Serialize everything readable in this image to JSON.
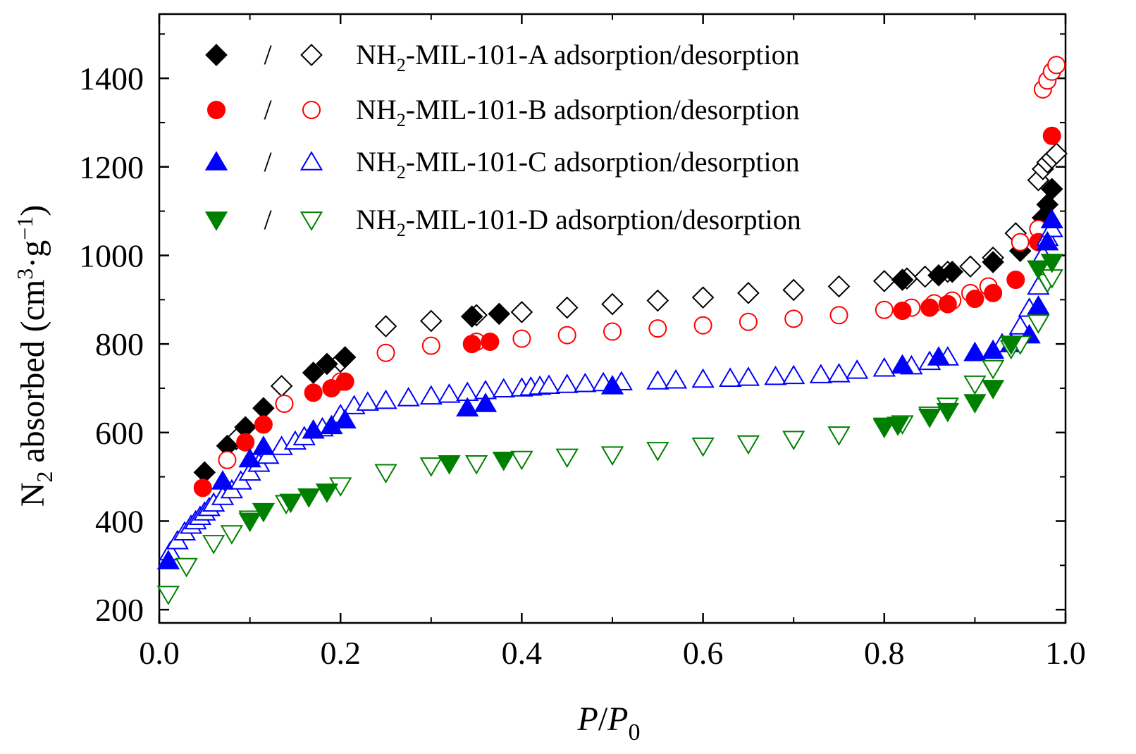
{
  "chart_data": {
    "type": "scatter",
    "xlabel": {
      "italic_main": "P",
      "slash": "/",
      "italic_denom": "P",
      "subscript": "0"
    },
    "ylabel": {
      "prefix": "N",
      "prefix_sub": "2",
      "middle": " absorbed (cm",
      "exp1": "3",
      "dot_g": "·g",
      "exp2": "−1",
      "suffix": ")"
    },
    "xlim": [
      0.0,
      1.0
    ],
    "ylim": [
      170,
      1545
    ],
    "xticks": [
      0.0,
      0.2,
      0.4,
      0.6,
      0.8,
      1.0
    ],
    "xtick_labels": [
      "0.0",
      "0.2",
      "0.4",
      "0.6",
      "0.8",
      "1.0"
    ],
    "yticks": [
      200,
      400,
      600,
      800,
      1000,
      1200,
      1400
    ],
    "ytick_labels": [
      "200",
      "400",
      "600",
      "800",
      "1000",
      "1200",
      "1400"
    ],
    "grid": false,
    "legend_position": "top-left",
    "legend_separator": "/",
    "series": [
      {
        "name": "NH2-MIL-101-A adsorption/desorption",
        "label_prefix": "NH",
        "label_sub": "2",
        "label_suffix": "-MIL-101-A adsorption/desorption",
        "color": "#000000",
        "adsorption_marker": "diamond",
        "desorption_marker": "diamond",
        "adsorption": {
          "x": [
            0.05,
            0.075,
            0.095,
            0.115,
            0.17,
            0.185,
            0.205,
            0.345,
            0.375,
            0.82,
            0.86,
            0.875,
            0.92,
            0.95,
            0.975,
            0.98,
            0.985
          ],
          "y": [
            510,
            570,
            612,
            655,
            735,
            755,
            770,
            862,
            868,
            945,
            955,
            963,
            985,
            1010,
            1085,
            1115,
            1150
          ]
        },
        "desorption": {
          "x": [
            0.085,
            0.135,
            0.2,
            0.25,
            0.3,
            0.35,
            0.4,
            0.45,
            0.5,
            0.55,
            0.6,
            0.65,
            0.7,
            0.75,
            0.8,
            0.825,
            0.845,
            0.87,
            0.895,
            0.92,
            0.945,
            0.97,
            0.975,
            0.98,
            0.985,
            0.99
          ],
          "y": [
            585,
            705,
            760,
            840,
            852,
            865,
            872,
            882,
            890,
            898,
            905,
            915,
            922,
            930,
            942,
            948,
            952,
            963,
            975,
            995,
            1050,
            1170,
            1195,
            1210,
            1220,
            1230
          ]
        }
      },
      {
        "name": "NH2-MIL-101-B adsorption/desorption",
        "label_prefix": "NH",
        "label_sub": "2",
        "label_suffix": "-MIL-101-B adsorption/desorption",
        "color": "#ff0000",
        "adsorption_marker": "circle",
        "desorption_marker": "circle",
        "adsorption": {
          "x": [
            0.048,
            0.095,
            0.115,
            0.17,
            0.19,
            0.205,
            0.345,
            0.365,
            0.82,
            0.85,
            0.87,
            0.9,
            0.92,
            0.945,
            0.97,
            0.985
          ],
          "y": [
            475,
            578,
            618,
            690,
            700,
            715,
            800,
            805,
            875,
            882,
            890,
            902,
            915,
            945,
            1030,
            1270
          ]
        },
        "desorption": {
          "x": [
            0.075,
            0.138,
            0.2,
            0.25,
            0.3,
            0.35,
            0.4,
            0.45,
            0.5,
            0.55,
            0.6,
            0.65,
            0.7,
            0.75,
            0.8,
            0.83,
            0.855,
            0.875,
            0.895,
            0.915,
            0.95,
            0.97,
            0.975,
            0.98,
            0.985,
            0.99
          ],
          "y": [
            538,
            665,
            715,
            780,
            796,
            805,
            812,
            820,
            828,
            835,
            842,
            850,
            857,
            865,
            877,
            882,
            892,
            898,
            915,
            930,
            1030,
            1060,
            1375,
            1395,
            1415,
            1430
          ]
        }
      },
      {
        "name": "NH2-MIL-101-C adsorption/desorption",
        "label_prefix": "NH",
        "label_sub": "2",
        "label_suffix": "-MIL-101-C adsorption/desorption",
        "color": "#0000ff",
        "adsorption_marker": "triangle-up",
        "desorption_marker": "triangle-up",
        "adsorption": {
          "x": [
            0.01,
            0.07,
            0.1,
            0.115,
            0.17,
            0.19,
            0.205,
            0.34,
            0.36,
            0.5,
            0.82,
            0.86,
            0.9,
            0.92,
            0.94,
            0.96,
            0.97,
            0.98,
            0.985
          ],
          "y": [
            310,
            490,
            540,
            568,
            605,
            615,
            628,
            655,
            665,
            705,
            752,
            770,
            780,
            785,
            800,
            820,
            885,
            1030,
            1080
          ]
        },
        "desorption": {
          "x": [
            0.012,
            0.02,
            0.028,
            0.035,
            0.04,
            0.045,
            0.05,
            0.055,
            0.06,
            0.07,
            0.08,
            0.09,
            0.1,
            0.11,
            0.12,
            0.135,
            0.15,
            0.16,
            0.18,
            0.2,
            0.215,
            0.23,
            0.25,
            0.275,
            0.3,
            0.32,
            0.34,
            0.36,
            0.38,
            0.4,
            0.41,
            0.42,
            0.43,
            0.45,
            0.47,
            0.49,
            0.51,
            0.55,
            0.57,
            0.6,
            0.63,
            0.65,
            0.68,
            0.7,
            0.73,
            0.75,
            0.77,
            0.8,
            0.83,
            0.85,
            0.87,
            0.9,
            0.93,
            0.95,
            0.96,
            0.97,
            0.975,
            0.98,
            0.985
          ],
          "y": [
            330,
            355,
            375,
            390,
            400,
            410,
            420,
            430,
            440,
            455,
            470,
            490,
            510,
            530,
            548,
            568,
            580,
            590,
            610,
            640,
            660,
            668,
            672,
            678,
            682,
            686,
            690,
            694,
            698,
            700,
            702,
            704,
            706,
            708,
            710,
            712,
            714,
            716,
            718,
            720,
            722,
            724,
            726,
            728,
            730,
            732,
            740,
            745,
            750,
            760,
            770,
            780,
            800,
            840,
            880,
            930,
            1000,
            1040,
            1060
          ]
        }
      },
      {
        "name": "NH2-MIL-101-D adsorption/desorption",
        "label_prefix": "NH",
        "label_sub": "2",
        "label_suffix": "-MIL-101-D adsorption/desorption",
        "color": "#008000",
        "adsorption_marker": "triangle-down",
        "desorption_marker": "triangle-down",
        "adsorption": {
          "x": [
            0.1,
            0.115,
            0.145,
            0.165,
            0.185,
            0.32,
            0.38,
            0.8,
            0.815,
            0.85,
            0.87,
            0.9,
            0.92,
            0.94,
            0.97,
            0.985
          ],
          "y": [
            400,
            422,
            443,
            455,
            466,
            530,
            538,
            612,
            617,
            635,
            648,
            668,
            700,
            800,
            970,
            985
          ]
        },
        "desorption": {
          "x": [
            0.01,
            0.03,
            0.06,
            0.08,
            0.1,
            0.14,
            0.2,
            0.25,
            0.3,
            0.35,
            0.4,
            0.45,
            0.5,
            0.55,
            0.6,
            0.65,
            0.7,
            0.75,
            0.8,
            0.82,
            0.85,
            0.87,
            0.9,
            0.92,
            0.94,
            0.95,
            0.97,
            0.98,
            0.985
          ],
          "y": [
            235,
            298,
            350,
            372,
            405,
            440,
            480,
            510,
            525,
            530,
            540,
            545,
            550,
            560,
            570,
            575,
            585,
            595,
            615,
            620,
            640,
            660,
            710,
            745,
            790,
            800,
            848,
            940,
            950
          ]
        }
      }
    ]
  }
}
